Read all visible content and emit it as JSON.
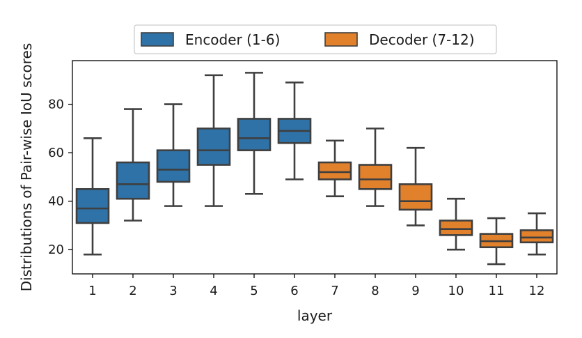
{
  "chart_data": {
    "type": "box",
    "title": "",
    "xlabel": "layer",
    "ylabel": "Distributions of Pair-wise IoU scores",
    "ylim": [
      10,
      98
    ],
    "yticks": [
      20,
      40,
      60,
      80
    ],
    "categories": [
      "1",
      "2",
      "3",
      "4",
      "5",
      "6",
      "7",
      "8",
      "9",
      "10",
      "11",
      "12"
    ],
    "legend_position": "top-center",
    "series": [
      {
        "name": "Encoder (1-6)",
        "color": "#2e72a8",
        "boxes": [
          {
            "layer": "1",
            "min": 18,
            "q1": 31,
            "median": 37,
            "q3": 45,
            "max": 66
          },
          {
            "layer": "2",
            "min": 32,
            "q1": 41,
            "median": 47,
            "q3": 56,
            "max": 78
          },
          {
            "layer": "3",
            "min": 38,
            "q1": 48,
            "median": 53,
            "q3": 61,
            "max": 80
          },
          {
            "layer": "4",
            "min": 38,
            "q1": 55,
            "median": 61,
            "q3": 70,
            "max": 92
          },
          {
            "layer": "5",
            "min": 43,
            "q1": 61,
            "median": 66,
            "q3": 74,
            "max": 93
          },
          {
            "layer": "6",
            "min": 49,
            "q1": 64,
            "median": 69,
            "q3": 74,
            "max": 89
          }
        ]
      },
      {
        "name": "Decoder (7-12)",
        "color": "#e1812c",
        "boxes": [
          {
            "layer": "7",
            "min": 42,
            "q1": 49,
            "median": 52,
            "q3": 56,
            "max": 65
          },
          {
            "layer": "8",
            "min": 38,
            "q1": 45,
            "median": 49,
            "q3": 55,
            "max": 70
          },
          {
            "layer": "9",
            "min": 30,
            "q1": 36.5,
            "median": 40,
            "q3": 47,
            "max": 62
          },
          {
            "layer": "10",
            "min": 20,
            "q1": 26,
            "median": 28.5,
            "q3": 32,
            "max": 41
          },
          {
            "layer": "11",
            "min": 14,
            "q1": 21,
            "median": 23.5,
            "q3": 26.5,
            "max": 33
          },
          {
            "layer": "12",
            "min": 18,
            "q1": 23,
            "median": 25,
            "q3": 28,
            "max": 35
          }
        ]
      }
    ]
  }
}
